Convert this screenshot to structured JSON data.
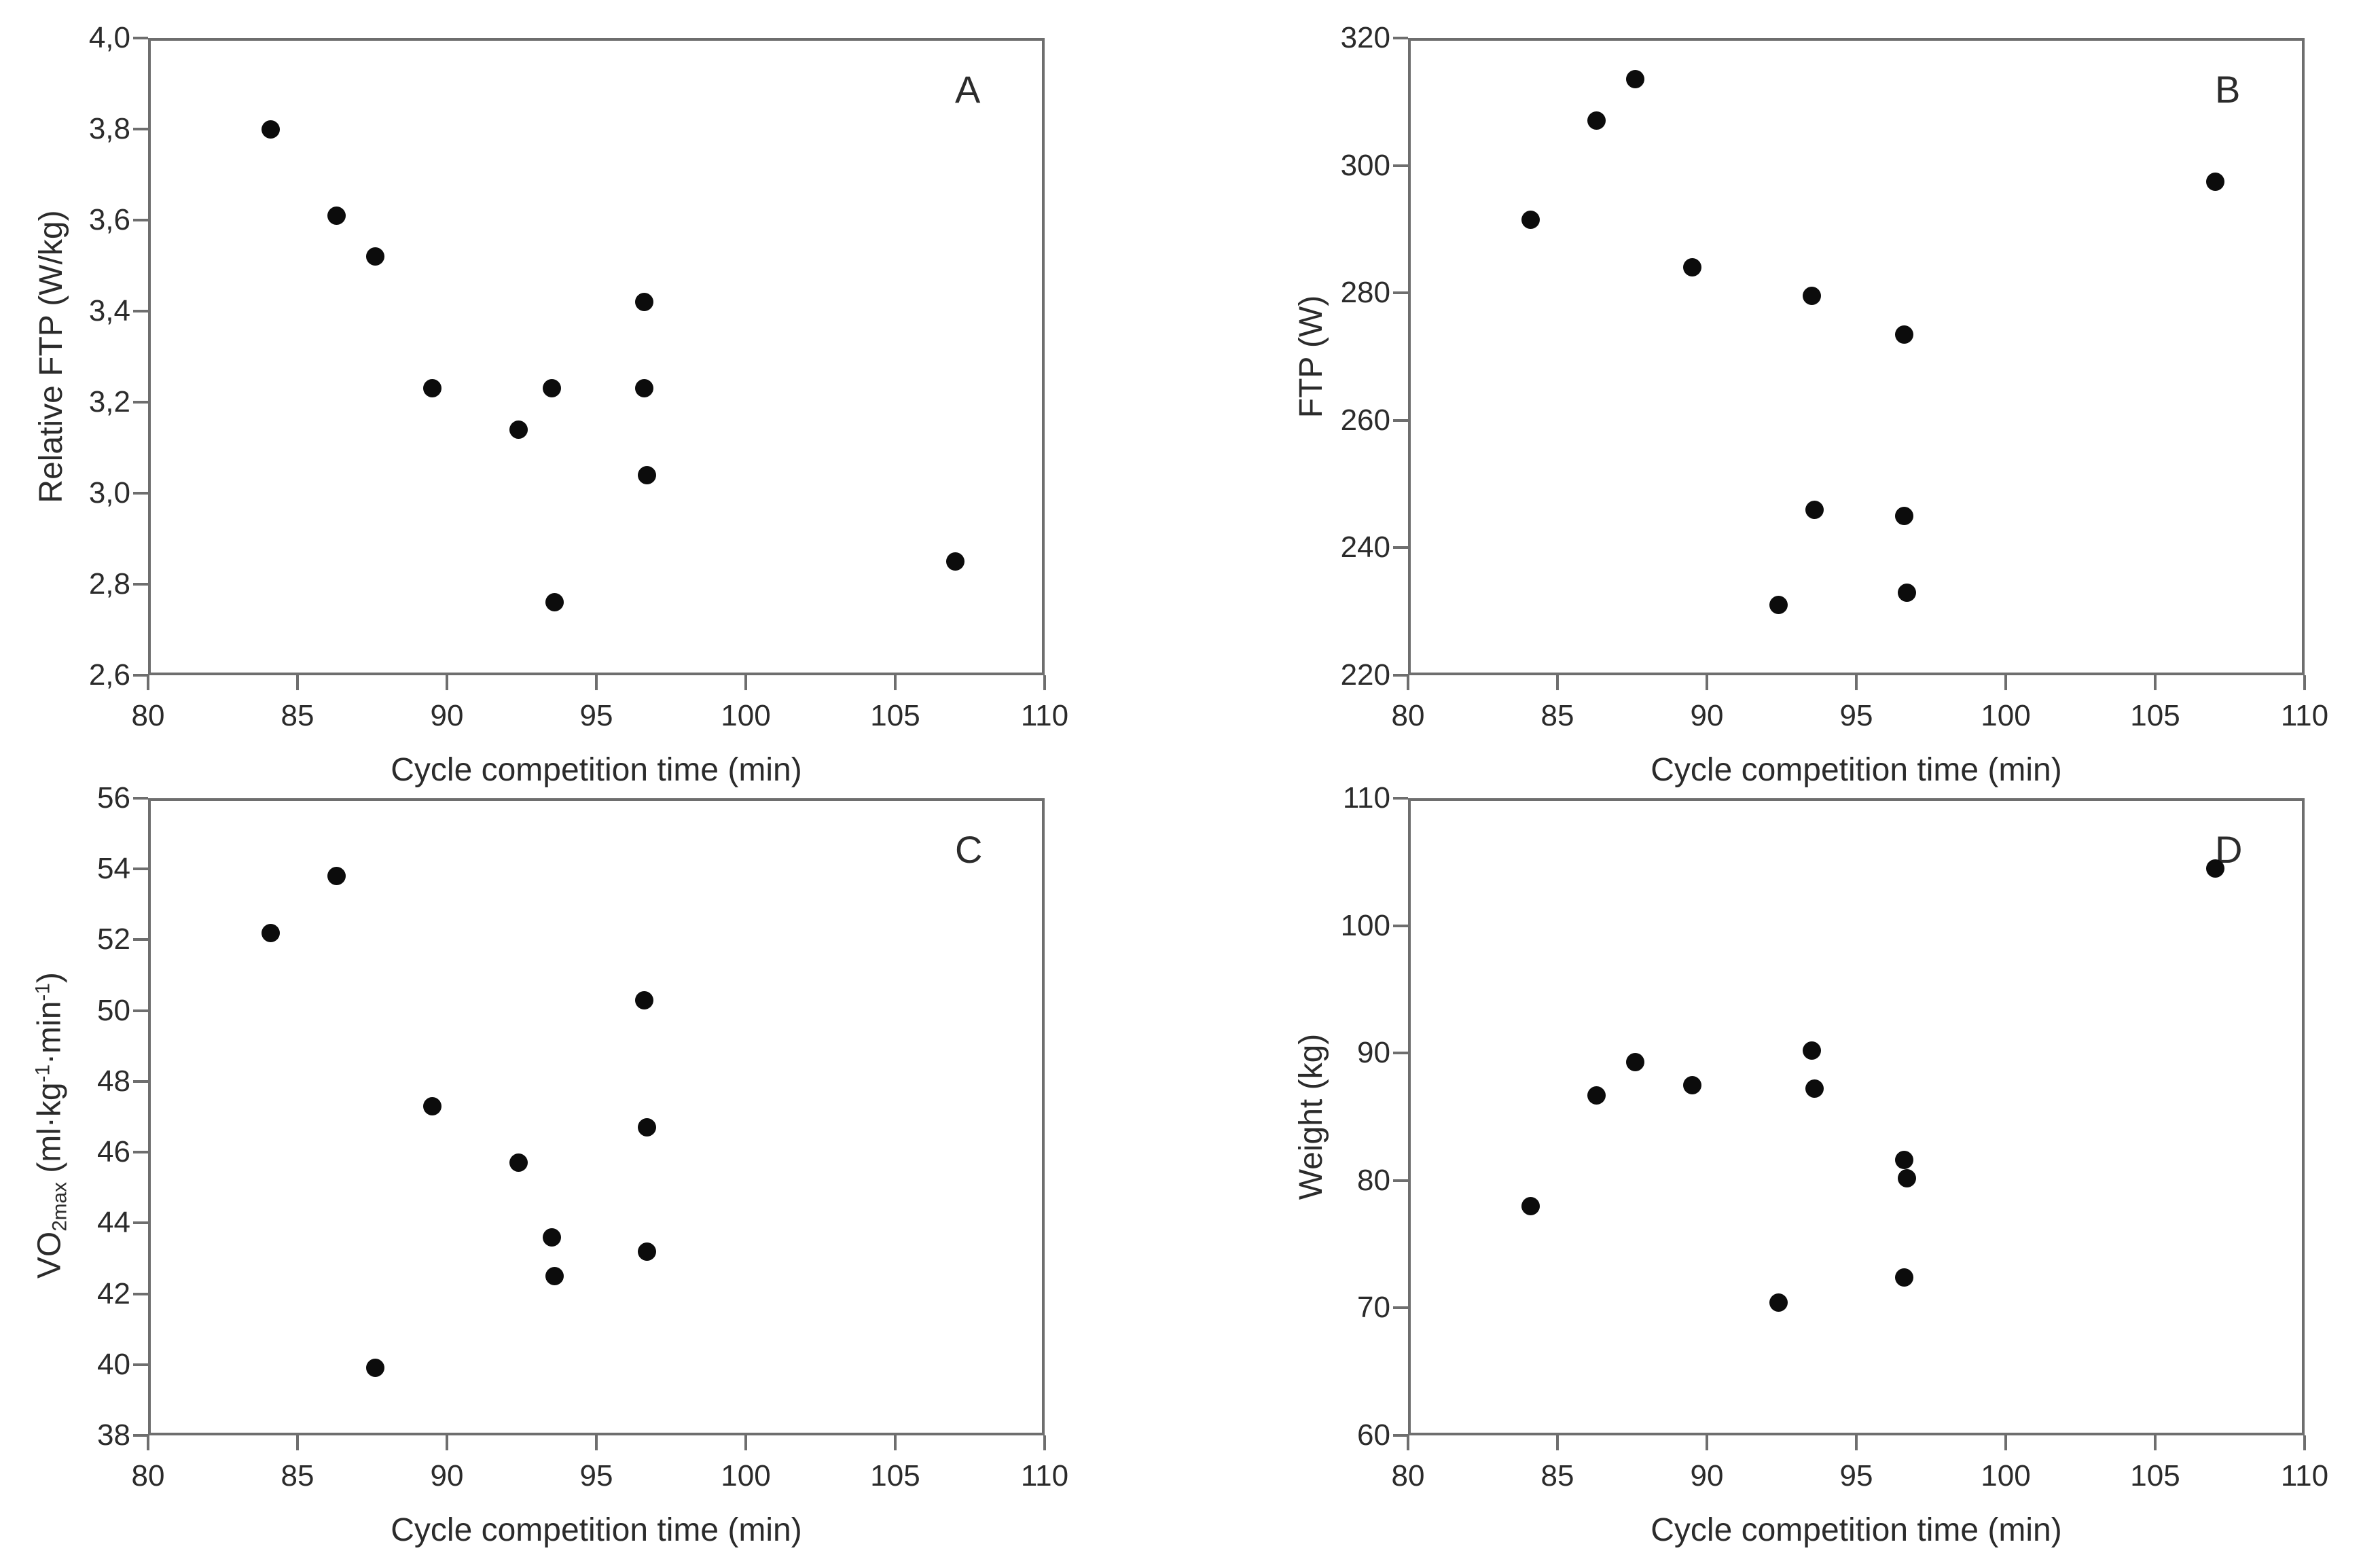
{
  "figure": {
    "background": "#ffffff",
    "axis_color": "#6e6e6e",
    "text_color": "#2b2b2b",
    "dot_color": "#0c0c0c"
  },
  "chart_data": [
    {
      "id": "A",
      "type": "scatter",
      "panel_label": "A",
      "xlabel": "Cycle competition time (min)",
      "xlim": [
        80,
        110
      ],
      "xticks": [
        {
          "v": 80,
          "label": "80"
        },
        {
          "v": 85,
          "label": "85"
        },
        {
          "v": 90,
          "label": "90"
        },
        {
          "v": 95,
          "label": "95"
        },
        {
          "v": 100,
          "label": "100"
        },
        {
          "v": 105,
          "label": "105"
        },
        {
          "v": 110,
          "label": "110"
        }
      ],
      "ylabel_segments": [
        {
          "t": "Relative FTP (W/kg)"
        }
      ],
      "ylim": [
        2.6,
        4.0
      ],
      "yticks": [
        {
          "v": 4.0,
          "label": "4,0"
        },
        {
          "v": 3.8,
          "label": "3,8"
        },
        {
          "v": 3.6,
          "label": "3,6"
        },
        {
          "v": 3.4,
          "label": "3,4"
        },
        {
          "v": 3.2,
          "label": "3,2"
        },
        {
          "v": 3.0,
          "label": "3,0"
        },
        {
          "v": 2.8,
          "label": "2,8"
        },
        {
          "v": 2.6,
          "label": "2,6"
        }
      ],
      "points": [
        [
          84.1,
          3.8
        ],
        [
          86.3,
          3.61
        ],
        [
          87.6,
          3.52
        ],
        [
          89.5,
          3.23
        ],
        [
          92.4,
          3.14
        ],
        [
          93.5,
          3.23
        ],
        [
          93.6,
          2.76
        ],
        [
          96.6,
          3.42
        ],
        [
          96.6,
          3.23
        ],
        [
          96.7,
          3.04
        ],
        [
          107.0,
          2.85
        ]
      ],
      "grid": false,
      "legend": null
    },
    {
      "id": "B",
      "type": "scatter",
      "panel_label": "B",
      "xlabel": "Cycle competition time (min)",
      "xlim": [
        80,
        110
      ],
      "xticks": [
        {
          "v": 80,
          "label": "80"
        },
        {
          "v": 85,
          "label": "85"
        },
        {
          "v": 90,
          "label": "90"
        },
        {
          "v": 95,
          "label": "95"
        },
        {
          "v": 100,
          "label": "100"
        },
        {
          "v": 105,
          "label": "105"
        },
        {
          "v": 110,
          "label": "110"
        }
      ],
      "ylabel_segments": [
        {
          "t": "FTP (W)"
        }
      ],
      "ylim": [
        220,
        320
      ],
      "yticks": [
        {
          "v": 320,
          "label": "320"
        },
        {
          "v": 300,
          "label": "300"
        },
        {
          "v": 280,
          "label": "280"
        },
        {
          "v": 260,
          "label": "260"
        },
        {
          "v": 240,
          "label": "240"
        },
        {
          "v": 220,
          "label": "220"
        }
      ],
      "points": [
        [
          84.1,
          291.5
        ],
        [
          86.3,
          307.0
        ],
        [
          87.6,
          313.5
        ],
        [
          89.5,
          284.0
        ],
        [
          92.4,
          231.0
        ],
        [
          93.5,
          279.5
        ],
        [
          93.6,
          246.0
        ],
        [
          96.6,
          273.5
        ],
        [
          96.6,
          245.0
        ],
        [
          96.7,
          233.0
        ],
        [
          107.0,
          297.5
        ]
      ],
      "grid": false,
      "legend": null
    },
    {
      "id": "C",
      "type": "scatter",
      "panel_label": "C",
      "xlabel": "Cycle competition time (min)",
      "xlim": [
        80,
        110
      ],
      "xticks": [
        {
          "v": 80,
          "label": "80"
        },
        {
          "v": 85,
          "label": "85"
        },
        {
          "v": 90,
          "label": "90"
        },
        {
          "v": 95,
          "label": "95"
        },
        {
          "v": 100,
          "label": "100"
        },
        {
          "v": 105,
          "label": "105"
        },
        {
          "v": 110,
          "label": "110"
        }
      ],
      "ylabel_segments": [
        {
          "t": "VO"
        },
        {
          "t": "2max",
          "style": "sub"
        },
        {
          "t": " (ml·kg"
        },
        {
          "t": "-1",
          "style": "sup"
        },
        {
          "t": "·min"
        },
        {
          "t": "-1",
          "style": "sup"
        },
        {
          "t": ")"
        }
      ],
      "ylim": [
        38,
        56
      ],
      "yticks": [
        {
          "v": 56,
          "label": "56"
        },
        {
          "v": 54,
          "label": "54"
        },
        {
          "v": 52,
          "label": "52"
        },
        {
          "v": 50,
          "label": "50"
        },
        {
          "v": 48,
          "label": "48"
        },
        {
          "v": 46,
          "label": "46"
        },
        {
          "v": 44,
          "label": "44"
        },
        {
          "v": 42,
          "label": "42"
        },
        {
          "v": 40,
          "label": "40"
        },
        {
          "v": 38,
          "label": "38"
        }
      ],
      "points": [
        [
          84.1,
          52.2
        ],
        [
          86.3,
          53.8
        ],
        [
          87.6,
          39.9
        ],
        [
          89.5,
          47.3
        ],
        [
          92.4,
          45.7
        ],
        [
          93.5,
          43.6
        ],
        [
          93.6,
          42.5
        ],
        [
          96.6,
          50.3
        ],
        [
          96.7,
          46.7
        ],
        [
          96.7,
          43.2
        ]
      ],
      "grid": false,
      "legend": null
    },
    {
      "id": "D",
      "type": "scatter",
      "panel_label": "D",
      "xlabel": "Cycle competition time (min)",
      "xlim": [
        80,
        110
      ],
      "xticks": [
        {
          "v": 80,
          "label": "80"
        },
        {
          "v": 85,
          "label": "85"
        },
        {
          "v": 90,
          "label": "90"
        },
        {
          "v": 95,
          "label": "95"
        },
        {
          "v": 100,
          "label": "100"
        },
        {
          "v": 105,
          "label": "105"
        },
        {
          "v": 110,
          "label": "110"
        }
      ],
      "ylabel_segments": [
        {
          "t": "Weight (kg)"
        }
      ],
      "ylim": [
        60,
        110
      ],
      "yticks": [
        {
          "v": 110,
          "label": "110"
        },
        {
          "v": 100,
          "label": "100"
        },
        {
          "v": 90,
          "label": "90"
        },
        {
          "v": 80,
          "label": "80"
        },
        {
          "v": 70,
          "label": "70"
        },
        {
          "v": 60,
          "label": "60"
        }
      ],
      "points": [
        [
          84.1,
          78.0
        ],
        [
          86.3,
          86.7
        ],
        [
          87.6,
          89.3
        ],
        [
          89.5,
          87.5
        ],
        [
          92.4,
          70.4
        ],
        [
          93.5,
          90.2
        ],
        [
          93.6,
          87.2
        ],
        [
          96.6,
          81.6
        ],
        [
          96.7,
          80.2
        ],
        [
          96.6,
          72.4
        ],
        [
          107.0,
          104.5
        ]
      ],
      "grid": false,
      "legend": null
    }
  ]
}
